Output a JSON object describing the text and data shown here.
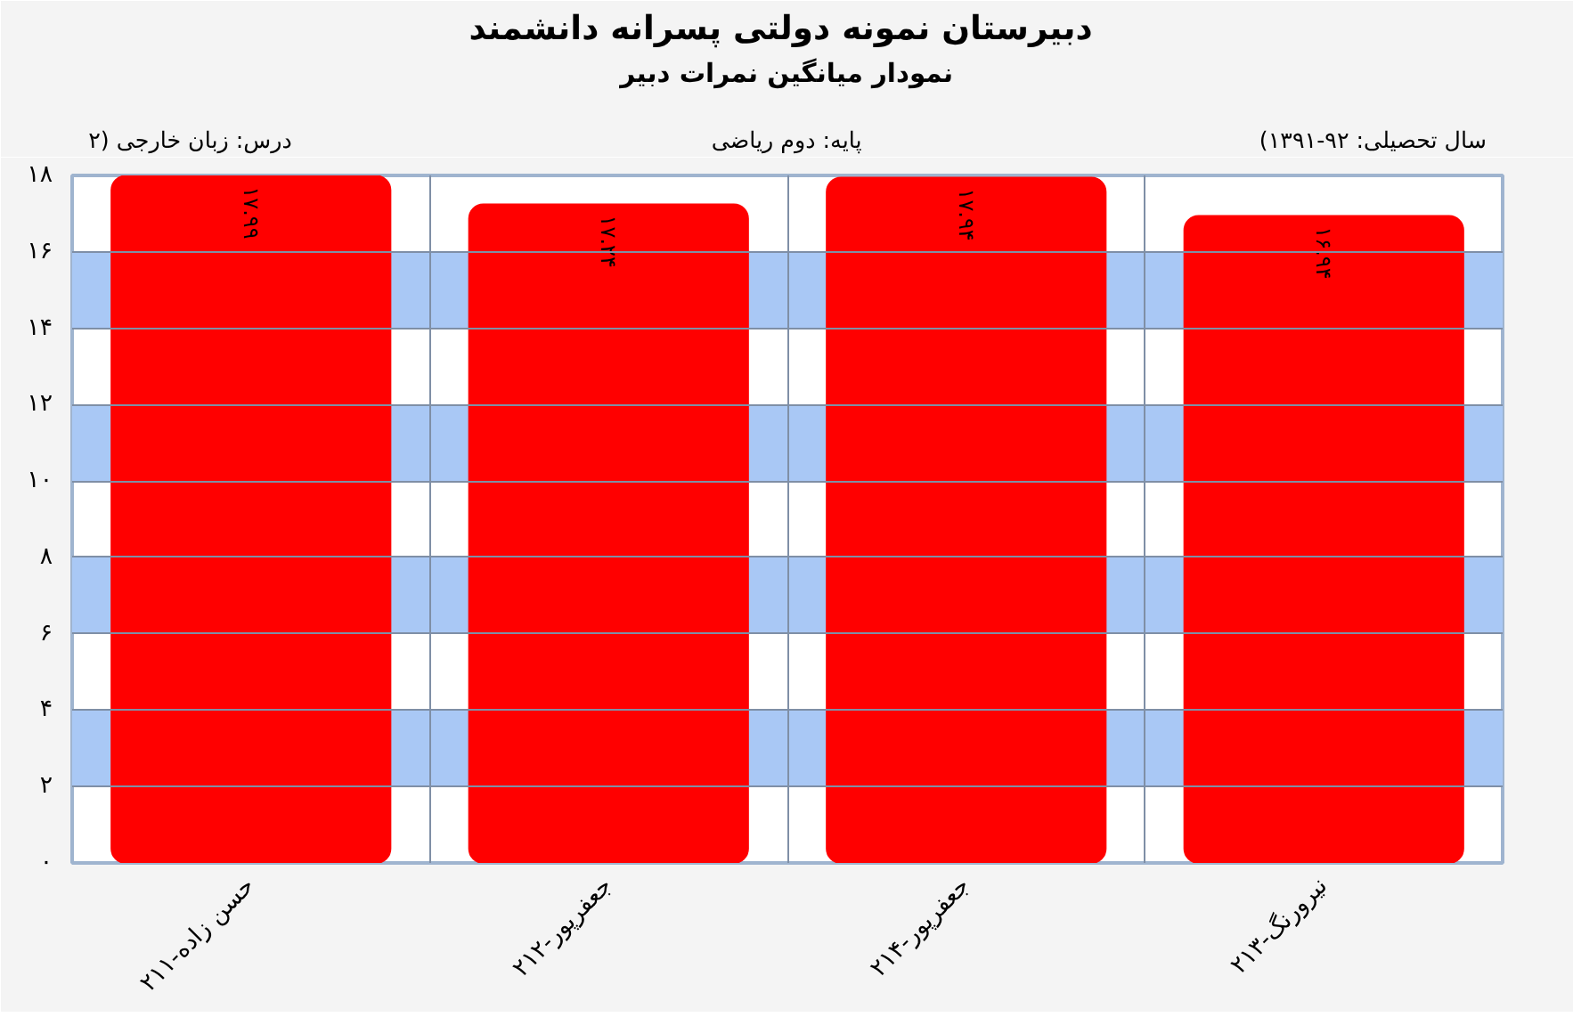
{
  "chart_data": {
    "type": "bar",
    "title": "دبیرستان  نمونه دولتی پسرانه دانشمند",
    "subtitle": "نمودار میانگین نمرات دبیر",
    "annotations": [
      "درس: زبان  خارجی  (۲",
      "پایه: دوم ریاضی",
      "(سال تحصیلی: ۹۲-۱۳۹۱"
    ],
    "categories": [
      "حسن زاده-۲۱۱",
      "جعفرپور-۲۱۲",
      "جعفرپور-۲۱۴",
      "نیرورنگ-۲۱۳"
    ],
    "values": [
      17.99,
      17.24,
      17.94,
      16.94
    ],
    "value_labels": [
      "۱۷.۹۹",
      "۱۷.۲۴",
      "۱۷.۹۴",
      "۱۶.۹۴"
    ],
    "color": "#ff0000",
    "ylim": [
      0,
      18
    ],
    "yticks": [
      {
        "value": 0,
        "label": "۰"
      },
      {
        "value": 2,
        "label": "۲"
      },
      {
        "value": 4,
        "label": "۴"
      },
      {
        "value": 6,
        "label": "۶"
      },
      {
        "value": 8,
        "label": "۸"
      },
      {
        "value": 10,
        "label": "۱۰"
      },
      {
        "value": 12,
        "label": "۱۲"
      },
      {
        "value": 14,
        "label": "۱۴"
      },
      {
        "value": 16,
        "label": "۱۶"
      },
      {
        "value": 18,
        "label": "۱۸"
      }
    ],
    "bands": [
      {
        "axis": "y",
        "from": 2,
        "to": 4,
        "color": "#a9c8f5"
      },
      {
        "axis": "y",
        "from": 6,
        "to": 8,
        "color": "#a9c8f5"
      },
      {
        "axis": "y",
        "from": 10,
        "to": 12,
        "color": "#a9c8f5"
      },
      {
        "axis": "y",
        "from": 14,
        "to": 16,
        "color": "#a9c8f5"
      }
    ],
    "grid": true
  }
}
